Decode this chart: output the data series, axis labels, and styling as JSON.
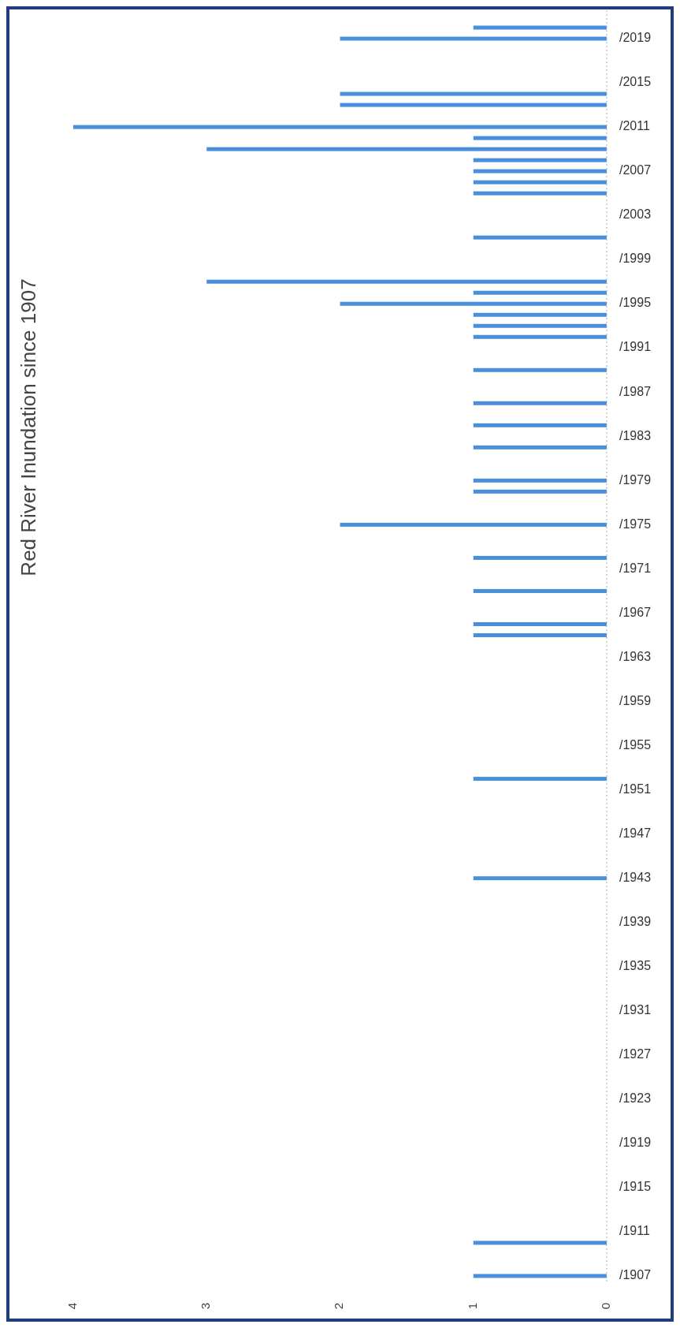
{
  "chart_data": {
    "type": "bar",
    "orientation": "horizontal",
    "title": "Red River Inundation since 1907",
    "categories": [
      null,
      "/2019",
      null,
      null,
      null,
      "/2015",
      null,
      null,
      null,
      "/2011",
      null,
      null,
      null,
      "/2007",
      null,
      null,
      null,
      "/2003",
      null,
      null,
      null,
      "/1999",
      null,
      null,
      null,
      "/1995",
      null,
      null,
      null,
      "/1991",
      null,
      null,
      null,
      "/1987",
      null,
      null,
      null,
      "/1983",
      null,
      null,
      null,
      "/1979",
      null,
      null,
      null,
      "/1975",
      null,
      null,
      null,
      "/1971",
      null,
      null,
      null,
      "/1967",
      null,
      null,
      null,
      "/1963",
      null,
      null,
      null,
      "/1959",
      null,
      null,
      null,
      "/1955",
      null,
      null,
      null,
      "/1951",
      null,
      null,
      null,
      "/1947",
      null,
      null,
      null,
      "/1943",
      null,
      null,
      null,
      "/1939",
      null,
      null,
      null,
      "/1935",
      null,
      null,
      null,
      "/1931",
      null,
      null,
      null,
      "/1927",
      null,
      null,
      null,
      "/1923",
      null,
      null,
      null,
      "/1919",
      null,
      null,
      null,
      "/1915",
      null,
      null,
      null,
      "/1911",
      null,
      null,
      null,
      "/1907"
    ],
    "values": [
      1,
      2,
      0,
      0,
      0,
      0,
      2,
      2,
      0,
      4,
      1,
      3,
      1,
      1,
      1,
      1,
      0,
      0,
      0,
      1,
      0,
      0,
      0,
      3,
      1,
      2,
      1,
      1,
      1,
      0,
      0,
      1,
      0,
      0,
      1,
      0,
      1,
      0,
      1,
      0,
      0,
      1,
      1,
      0,
      0,
      2,
      0,
      0,
      1,
      0,
      0,
      1,
      0,
      0,
      1,
      1,
      0,
      0,
      0,
      0,
      0,
      0,
      0,
      0,
      0,
      0,
      0,
      0,
      1,
      0,
      0,
      0,
      0,
      0,
      0,
      0,
      0,
      1,
      0,
      0,
      0,
      0,
      0,
      0,
      0,
      0,
      0,
      0,
      0,
      0,
      0,
      0,
      0,
      0,
      0,
      0,
      0,
      0,
      0,
      0,
      0,
      0,
      0,
      0,
      0,
      0,
      0,
      0,
      0,
      0,
      1,
      0,
      0,
      1
    ],
    "color": "#4a8fdb",
    "xlim": [
      4,
      0
    ],
    "xticks": [
      4,
      3,
      2,
      1,
      0
    ]
  }
}
